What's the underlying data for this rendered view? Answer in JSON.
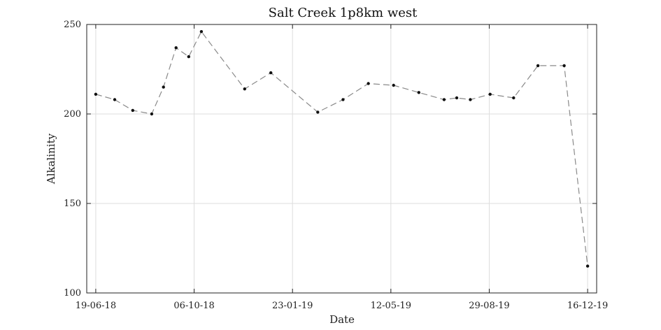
{
  "chart_data": {
    "type": "line",
    "title": "Salt Creek 1p8km west",
    "xlabel": "Date",
    "ylabel": "Alkalinity",
    "ylim": [
      100,
      250
    ],
    "yticks": [
      100,
      150,
      200,
      250
    ],
    "xlim": [
      "2018-06-09",
      "2019-12-26"
    ],
    "xticks": [
      {
        "date": "2018-06-19",
        "label": "19-06-18"
      },
      {
        "date": "2018-10-06",
        "label": "06-10-18"
      },
      {
        "date": "2019-01-23",
        "label": "23-01-19"
      },
      {
        "date": "2019-05-12",
        "label": "12-05-19"
      },
      {
        "date": "2019-08-29",
        "label": "29-08-19"
      },
      {
        "date": "2019-12-16",
        "label": "16-12-19"
      }
    ],
    "grid": true,
    "line_style": "dashed",
    "colors": {
      "line": "#8a8a8a",
      "marker": "#111111",
      "grid": "#dddddd"
    },
    "series": [
      {
        "x": [
          "2018-06-19",
          "2018-07-10",
          "2018-07-30",
          "2018-08-20",
          "2018-09-02",
          "2018-09-16",
          "2018-09-30",
          "2018-10-14",
          "2018-12-01",
          "2018-12-30",
          "2019-02-20",
          "2019-03-20",
          "2019-04-17",
          "2019-05-15",
          "2019-06-12",
          "2019-07-10",
          "2019-07-24",
          "2019-08-08",
          "2019-08-30",
          "2019-09-25",
          "2019-10-22",
          "2019-11-20",
          "2019-12-16"
        ],
        "y": [
          211,
          208,
          202,
          200,
          215,
          237,
          232,
          246,
          214,
          223,
          201,
          208,
          217,
          216,
          212,
          208,
          209,
          208,
          211,
          209,
          227,
          227,
          115
        ]
      }
    ]
  }
}
